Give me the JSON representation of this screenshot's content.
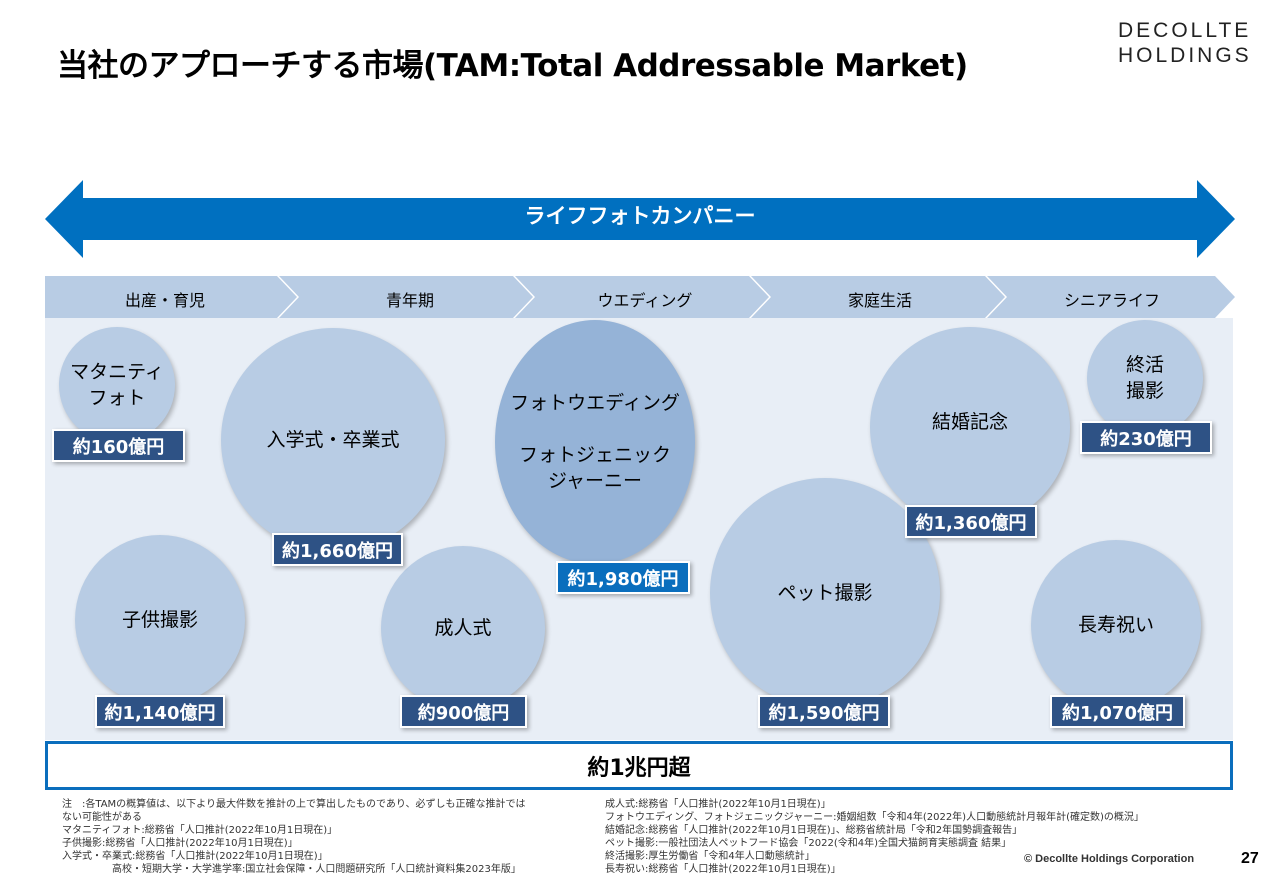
{
  "header": {
    "title": "当社のアプローチする市場(TAM:Total Addressable Market)",
    "logo_line1": "DECOLLTE",
    "logo_line2": "HOLDINGS"
  },
  "arrow": {
    "label": "ライフフォトカンパニー",
    "color": "#0070c0"
  },
  "stages": [
    "出産・育児",
    "青年期",
    "ウエディング",
    "家庭生活",
    "シニアライフ"
  ],
  "markets": [
    {
      "name": "マタニティ\nフォト",
      "value": "約160億円"
    },
    {
      "name": "入学式・卒業式",
      "value": "約1,660億円"
    },
    {
      "name": "子供撮影",
      "value": "約1,140億円"
    },
    {
      "name": "成人式",
      "value": "約900億円"
    },
    {
      "name": "フォトウエディング\n\nフォトジェニック\nジャーニー",
      "value": "約1,980億円",
      "highlight": true
    },
    {
      "name": "ペット撮影",
      "value": "約1,590億円"
    },
    {
      "name": "結婚記念",
      "value": "約1,360億円"
    },
    {
      "name": "終活\n撮影",
      "value": "約230億円"
    },
    {
      "name": "長寿祝い",
      "value": "約1,070億円"
    }
  ],
  "total": "約1兆円超",
  "notes_left": "注　:各TAMの概算値は、以下より最大件数を推計の上で算出したものであり、必ずしも正確な推計では\nない可能性がある\nマタニティフォト:総務省「人口推計(2022年10月1日現在)」\n子供撮影:総務省「人口推計(2022年10月1日現在)」\n入学式・卒業式:総務省「人口推計(2022年10月1日現在)」\n　　　　　高校・短期大学・大学進学率:国立社会保障・人口問題研究所「人口統計資料集2023年版」",
  "notes_right": "成人式:総務省「人口推計(2022年10月1日現在)」\nフォトウエディング、フォトジェニックジャーニー:婚姻組数「令和4年(2022年)人口動態統計月報年計(確定数)の概況」\n結婚記念:総務省「人口推計(2022年10月1日現在)」、総務省統計局「令和2年国勢調査報告」\nペット撮影:一般社団法人ペットフード協会「2022(令和4年)全国犬猫飼育実態調査 結果」\n終活撮影:厚生労働省「令和4年人口動態統計」\n長寿祝い:総務省「人口推計(2022年10月1日現在)」",
  "footer": {
    "copyright": "© Decollte Holdings Corporation",
    "page": "27"
  }
}
